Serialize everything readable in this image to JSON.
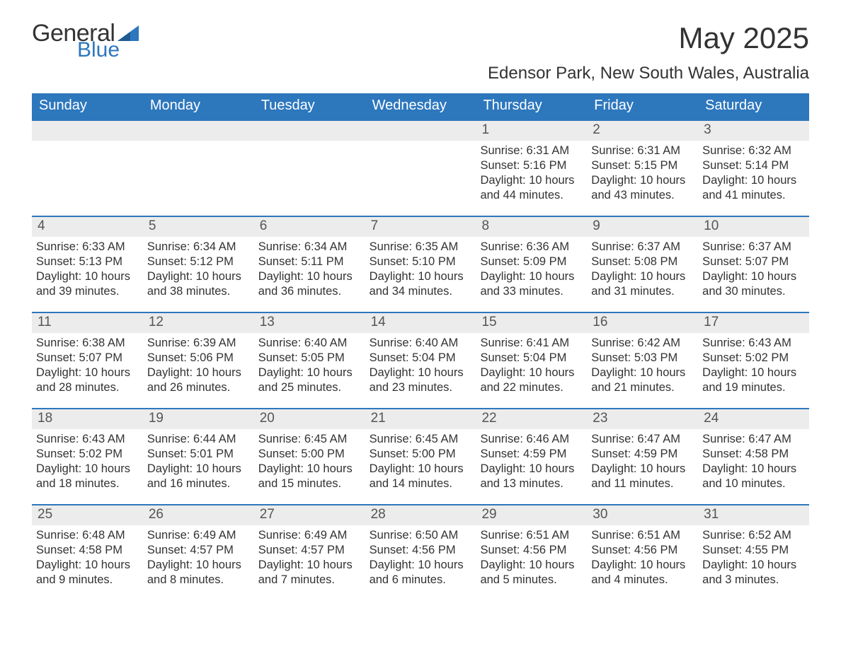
{
  "logo": {
    "word1": "General",
    "word2": "Blue",
    "accent_color": "#2d77bd",
    "text_color": "#333333"
  },
  "title": "May 2025",
  "location": "Edensor Park, New South Wales, Australia",
  "colors": {
    "header_bg": "#2d77bd",
    "header_text": "#ffffff",
    "daynum_bg": "#ececec",
    "daynum_border": "#2d77bd",
    "body_text": "#333333",
    "background": "#ffffff"
  },
  "day_names": [
    "Sunday",
    "Monday",
    "Tuesday",
    "Wednesday",
    "Thursday",
    "Friday",
    "Saturday"
  ],
  "labels": {
    "sunrise": "Sunrise:",
    "sunset": "Sunset:",
    "daylight": "Daylight:"
  },
  "weeks": [
    [
      {
        "n": "",
        "empty": true
      },
      {
        "n": "",
        "empty": true
      },
      {
        "n": "",
        "empty": true
      },
      {
        "n": "",
        "empty": true
      },
      {
        "n": "1",
        "sunrise": "6:31 AM",
        "sunset": "5:16 PM",
        "daylight": "10 hours and 44 minutes."
      },
      {
        "n": "2",
        "sunrise": "6:31 AM",
        "sunset": "5:15 PM",
        "daylight": "10 hours and 43 minutes."
      },
      {
        "n": "3",
        "sunrise": "6:32 AM",
        "sunset": "5:14 PM",
        "daylight": "10 hours and 41 minutes."
      }
    ],
    [
      {
        "n": "4",
        "sunrise": "6:33 AM",
        "sunset": "5:13 PM",
        "daylight": "10 hours and 39 minutes."
      },
      {
        "n": "5",
        "sunrise": "6:34 AM",
        "sunset": "5:12 PM",
        "daylight": "10 hours and 38 minutes."
      },
      {
        "n": "6",
        "sunrise": "6:34 AM",
        "sunset": "5:11 PM",
        "daylight": "10 hours and 36 minutes."
      },
      {
        "n": "7",
        "sunrise": "6:35 AM",
        "sunset": "5:10 PM",
        "daylight": "10 hours and 34 minutes."
      },
      {
        "n": "8",
        "sunrise": "6:36 AM",
        "sunset": "5:09 PM",
        "daylight": "10 hours and 33 minutes."
      },
      {
        "n": "9",
        "sunrise": "6:37 AM",
        "sunset": "5:08 PM",
        "daylight": "10 hours and 31 minutes."
      },
      {
        "n": "10",
        "sunrise": "6:37 AM",
        "sunset": "5:07 PM",
        "daylight": "10 hours and 30 minutes."
      }
    ],
    [
      {
        "n": "11",
        "sunrise": "6:38 AM",
        "sunset": "5:07 PM",
        "daylight": "10 hours and 28 minutes."
      },
      {
        "n": "12",
        "sunrise": "6:39 AM",
        "sunset": "5:06 PM",
        "daylight": "10 hours and 26 minutes."
      },
      {
        "n": "13",
        "sunrise": "6:40 AM",
        "sunset": "5:05 PM",
        "daylight": "10 hours and 25 minutes."
      },
      {
        "n": "14",
        "sunrise": "6:40 AM",
        "sunset": "5:04 PM",
        "daylight": "10 hours and 23 minutes."
      },
      {
        "n": "15",
        "sunrise": "6:41 AM",
        "sunset": "5:04 PM",
        "daylight": "10 hours and 22 minutes."
      },
      {
        "n": "16",
        "sunrise": "6:42 AM",
        "sunset": "5:03 PM",
        "daylight": "10 hours and 21 minutes."
      },
      {
        "n": "17",
        "sunrise": "6:43 AM",
        "sunset": "5:02 PM",
        "daylight": "10 hours and 19 minutes."
      }
    ],
    [
      {
        "n": "18",
        "sunrise": "6:43 AM",
        "sunset": "5:02 PM",
        "daylight": "10 hours and 18 minutes."
      },
      {
        "n": "19",
        "sunrise": "6:44 AM",
        "sunset": "5:01 PM",
        "daylight": "10 hours and 16 minutes."
      },
      {
        "n": "20",
        "sunrise": "6:45 AM",
        "sunset": "5:00 PM",
        "daylight": "10 hours and 15 minutes."
      },
      {
        "n": "21",
        "sunrise": "6:45 AM",
        "sunset": "5:00 PM",
        "daylight": "10 hours and 14 minutes."
      },
      {
        "n": "22",
        "sunrise": "6:46 AM",
        "sunset": "4:59 PM",
        "daylight": "10 hours and 13 minutes."
      },
      {
        "n": "23",
        "sunrise": "6:47 AM",
        "sunset": "4:59 PM",
        "daylight": "10 hours and 11 minutes."
      },
      {
        "n": "24",
        "sunrise": "6:47 AM",
        "sunset": "4:58 PM",
        "daylight": "10 hours and 10 minutes."
      }
    ],
    [
      {
        "n": "25",
        "sunrise": "6:48 AM",
        "sunset": "4:58 PM",
        "daylight": "10 hours and 9 minutes."
      },
      {
        "n": "26",
        "sunrise": "6:49 AM",
        "sunset": "4:57 PM",
        "daylight": "10 hours and 8 minutes."
      },
      {
        "n": "27",
        "sunrise": "6:49 AM",
        "sunset": "4:57 PM",
        "daylight": "10 hours and 7 minutes."
      },
      {
        "n": "28",
        "sunrise": "6:50 AM",
        "sunset": "4:56 PM",
        "daylight": "10 hours and 6 minutes."
      },
      {
        "n": "29",
        "sunrise": "6:51 AM",
        "sunset": "4:56 PM",
        "daylight": "10 hours and 5 minutes."
      },
      {
        "n": "30",
        "sunrise": "6:51 AM",
        "sunset": "4:56 PM",
        "daylight": "10 hours and 4 minutes."
      },
      {
        "n": "31",
        "sunrise": "6:52 AM",
        "sunset": "4:55 PM",
        "daylight": "10 hours and 3 minutes."
      }
    ]
  ]
}
